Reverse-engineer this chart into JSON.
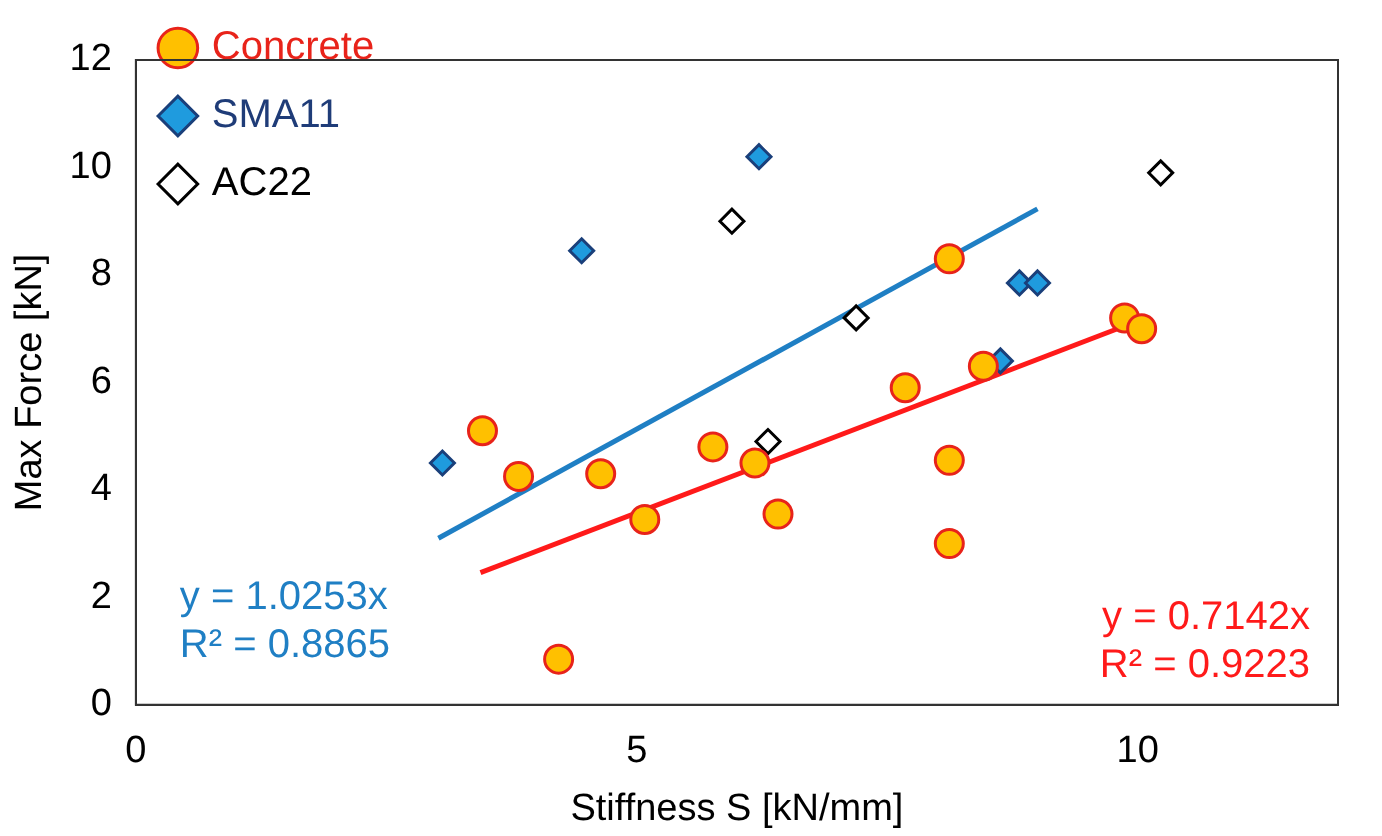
{
  "chart_data": {
    "type": "scatter",
    "xlabel": "Stiffness S [kN/mm]",
    "ylabel": "Max Force [kN]",
    "xlim": [
      0,
      12
    ],
    "xticks": [
      0,
      5,
      10
    ],
    "ylim": [
      0,
      12
    ],
    "yticks": [
      0,
      2,
      4,
      6,
      8,
      10,
      12
    ],
    "grid": false,
    "legend": "top left",
    "series": [
      {
        "name": "Concrete",
        "color": "#ffc000",
        "marker": "circle",
        "x": [
          3.46,
          3.82,
          4.64,
          5.08,
          4.22,
          5.76,
          6.18,
          6.41,
          7.68,
          8.12,
          8.12,
          8.12,
          8.46,
          9.87,
          10.04
        ],
        "values": [
          5.1,
          4.25,
          4.3,
          3.45,
          0.85,
          4.8,
          4.5,
          3.55,
          5.9,
          8.3,
          4.55,
          3.0,
          6.3,
          7.2,
          7.0
        ]
      },
      {
        "name": "SMA11",
        "color": "#1f9bde",
        "marker": "diamond",
        "x": [
          3.06,
          4.45,
          6.22,
          8.82,
          9.0,
          8.63
        ],
        "values": [
          4.5,
          8.45,
          10.2,
          7.85,
          7.85,
          6.4
        ]
      },
      {
        "name": "AC22",
        "color": "#000000",
        "marker": "diamond",
        "x": [
          5.95,
          7.19,
          6.31,
          10.23
        ],
        "values": [
          9.0,
          7.2,
          4.9,
          9.9
        ]
      },
      {
        "type": "line",
        "color": "#1f7fc4",
        "x": [
          3.02,
          9.0
        ],
        "values": [
          3.1,
          9.23
        ]
      },
      {
        "type": "line",
        "color": "#ff1a1a",
        "x": [
          3.44,
          10.04
        ],
        "values": [
          2.46,
          7.17
        ]
      }
    ],
    "annotations": [
      "y = 1.0253x\nR² = 0.8865",
      "y = 0.7142x\nR² = 0.9223"
    ]
  }
}
